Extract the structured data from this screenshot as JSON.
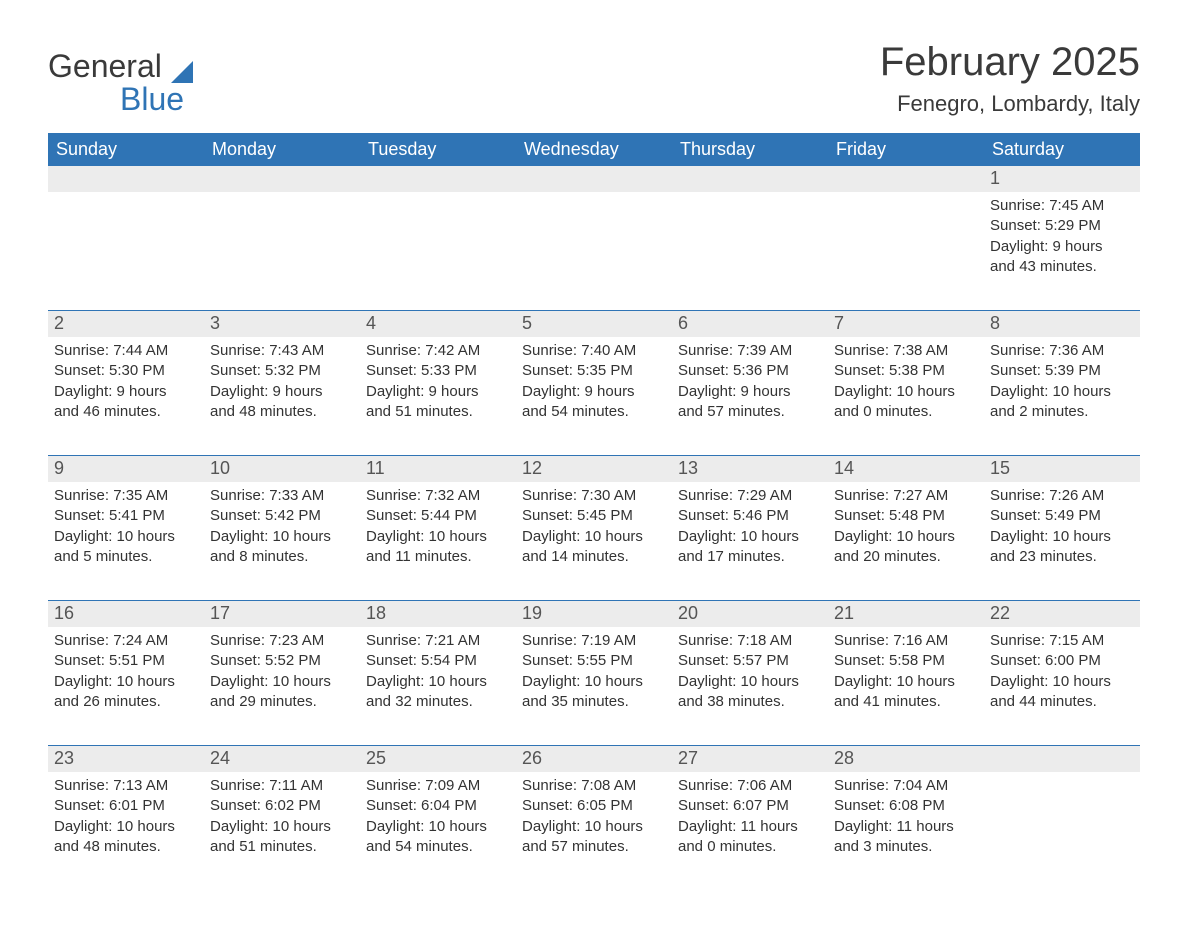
{
  "logo": {
    "word1": "General",
    "word2": "Blue"
  },
  "title": "February 2025",
  "location": "Fenegro, Lombardy, Italy",
  "colors": {
    "header_bg": "#2f74b5",
    "header_text": "#ffffff",
    "daynum_bg": "#ececec",
    "daynum_text": "#555555",
    "body_text": "#333333",
    "separator": "#2f74b5",
    "background": "#ffffff",
    "logo_blue": "#2f74b5",
    "logo_dark": "#3a3a3a"
  },
  "fonts": {
    "title_size_pt": 30,
    "location_size_pt": 16,
    "header_size_pt": 14,
    "daynum_size_pt": 14,
    "detail_size_pt": 11
  },
  "day_names": [
    "Sunday",
    "Monday",
    "Tuesday",
    "Wednesday",
    "Thursday",
    "Friday",
    "Saturday"
  ],
  "labels": {
    "sunrise": "Sunrise:",
    "sunset": "Sunset:",
    "daylight": "Daylight:"
  },
  "weeks": [
    [
      null,
      null,
      null,
      null,
      null,
      null,
      {
        "d": "1",
        "sunrise": "7:45 AM",
        "sunset": "5:29 PM",
        "daylight_l1": "9 hours",
        "daylight_l2": "and 43 minutes."
      }
    ],
    [
      {
        "d": "2",
        "sunrise": "7:44 AM",
        "sunset": "5:30 PM",
        "daylight_l1": "9 hours",
        "daylight_l2": "and 46 minutes."
      },
      {
        "d": "3",
        "sunrise": "7:43 AM",
        "sunset": "5:32 PM",
        "daylight_l1": "9 hours",
        "daylight_l2": "and 48 minutes."
      },
      {
        "d": "4",
        "sunrise": "7:42 AM",
        "sunset": "5:33 PM",
        "daylight_l1": "9 hours",
        "daylight_l2": "and 51 minutes."
      },
      {
        "d": "5",
        "sunrise": "7:40 AM",
        "sunset": "5:35 PM",
        "daylight_l1": "9 hours",
        "daylight_l2": "and 54 minutes."
      },
      {
        "d": "6",
        "sunrise": "7:39 AM",
        "sunset": "5:36 PM",
        "daylight_l1": "9 hours",
        "daylight_l2": "and 57 minutes."
      },
      {
        "d": "7",
        "sunrise": "7:38 AM",
        "sunset": "5:38 PM",
        "daylight_l1": "10 hours",
        "daylight_l2": "and 0 minutes."
      },
      {
        "d": "8",
        "sunrise": "7:36 AM",
        "sunset": "5:39 PM",
        "daylight_l1": "10 hours",
        "daylight_l2": "and 2 minutes."
      }
    ],
    [
      {
        "d": "9",
        "sunrise": "7:35 AM",
        "sunset": "5:41 PM",
        "daylight_l1": "10 hours",
        "daylight_l2": "and 5 minutes."
      },
      {
        "d": "10",
        "sunrise": "7:33 AM",
        "sunset": "5:42 PM",
        "daylight_l1": "10 hours",
        "daylight_l2": "and 8 minutes."
      },
      {
        "d": "11",
        "sunrise": "7:32 AM",
        "sunset": "5:44 PM",
        "daylight_l1": "10 hours",
        "daylight_l2": "and 11 minutes."
      },
      {
        "d": "12",
        "sunrise": "7:30 AM",
        "sunset": "5:45 PM",
        "daylight_l1": "10 hours",
        "daylight_l2": "and 14 minutes."
      },
      {
        "d": "13",
        "sunrise": "7:29 AM",
        "sunset": "5:46 PM",
        "daylight_l1": "10 hours",
        "daylight_l2": "and 17 minutes."
      },
      {
        "d": "14",
        "sunrise": "7:27 AM",
        "sunset": "5:48 PM",
        "daylight_l1": "10 hours",
        "daylight_l2": "and 20 minutes."
      },
      {
        "d": "15",
        "sunrise": "7:26 AM",
        "sunset": "5:49 PM",
        "daylight_l1": "10 hours",
        "daylight_l2": "and 23 minutes."
      }
    ],
    [
      {
        "d": "16",
        "sunrise": "7:24 AM",
        "sunset": "5:51 PM",
        "daylight_l1": "10 hours",
        "daylight_l2": "and 26 minutes."
      },
      {
        "d": "17",
        "sunrise": "7:23 AM",
        "sunset": "5:52 PM",
        "daylight_l1": "10 hours",
        "daylight_l2": "and 29 minutes."
      },
      {
        "d": "18",
        "sunrise": "7:21 AM",
        "sunset": "5:54 PM",
        "daylight_l1": "10 hours",
        "daylight_l2": "and 32 minutes."
      },
      {
        "d": "19",
        "sunrise": "7:19 AM",
        "sunset": "5:55 PM",
        "daylight_l1": "10 hours",
        "daylight_l2": "and 35 minutes."
      },
      {
        "d": "20",
        "sunrise": "7:18 AM",
        "sunset": "5:57 PM",
        "daylight_l1": "10 hours",
        "daylight_l2": "and 38 minutes."
      },
      {
        "d": "21",
        "sunrise": "7:16 AM",
        "sunset": "5:58 PM",
        "daylight_l1": "10 hours",
        "daylight_l2": "and 41 minutes."
      },
      {
        "d": "22",
        "sunrise": "7:15 AM",
        "sunset": "6:00 PM",
        "daylight_l1": "10 hours",
        "daylight_l2": "and 44 minutes."
      }
    ],
    [
      {
        "d": "23",
        "sunrise": "7:13 AM",
        "sunset": "6:01 PM",
        "daylight_l1": "10 hours",
        "daylight_l2": "and 48 minutes."
      },
      {
        "d": "24",
        "sunrise": "7:11 AM",
        "sunset": "6:02 PM",
        "daylight_l1": "10 hours",
        "daylight_l2": "and 51 minutes."
      },
      {
        "d": "25",
        "sunrise": "7:09 AM",
        "sunset": "6:04 PM",
        "daylight_l1": "10 hours",
        "daylight_l2": "and 54 minutes."
      },
      {
        "d": "26",
        "sunrise": "7:08 AM",
        "sunset": "6:05 PM",
        "daylight_l1": "10 hours",
        "daylight_l2": "and 57 minutes."
      },
      {
        "d": "27",
        "sunrise": "7:06 AM",
        "sunset": "6:07 PM",
        "daylight_l1": "11 hours",
        "daylight_l2": "and 0 minutes."
      },
      {
        "d": "28",
        "sunrise": "7:04 AM",
        "sunset": "6:08 PM",
        "daylight_l1": "11 hours",
        "daylight_l2": "and 3 minutes."
      },
      null
    ]
  ]
}
